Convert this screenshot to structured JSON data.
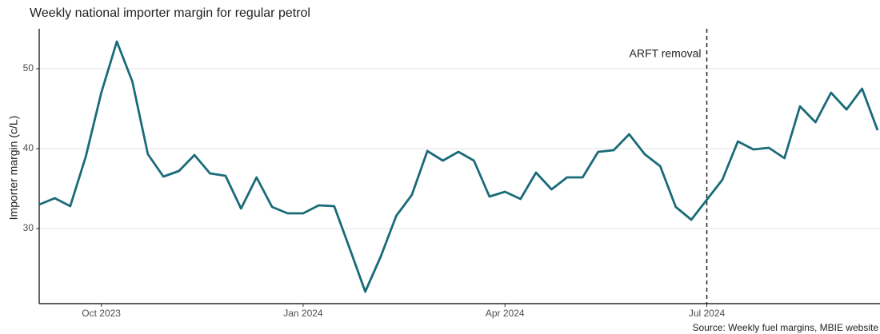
{
  "chart_data": {
    "type": "line",
    "title": "Weekly national importer margin for regular petrol",
    "y_label": "Importer margin (c/L)",
    "source": "Source: Weekly fuel margins, MBIE website",
    "annotation": "ARFT removal",
    "color": "#1a6b78",
    "grid": true,
    "categories": [
      null,
      null,
      null,
      null,
      "Oct 2023",
      null,
      null,
      null,
      null,
      null,
      null,
      null,
      null,
      null,
      null,
      null,
      null,
      "Jan 2024",
      null,
      null,
      null,
      null,
      null,
      null,
      null,
      null,
      null,
      null,
      null,
      null,
      "Apr 2024",
      null,
      null,
      null,
      null,
      null,
      null,
      null,
      null,
      null,
      null,
      null,
      null,
      "Jul 2024",
      null,
      null,
      null,
      null,
      null,
      null,
      null,
      null,
      null,
      null,
      null
    ],
    "values": [
      33.0,
      33.8,
      32.8,
      39.0,
      47.0,
      53.4,
      48.4,
      39.3,
      36.5,
      37.2,
      39.2,
      36.9,
      36.6,
      32.5,
      36.4,
      32.7,
      31.9,
      31.9,
      32.9,
      32.8,
      27.5,
      22.1,
      26.5,
      31.6,
      34.2,
      39.7,
      38.5,
      39.6,
      38.5,
      34.0,
      34.6,
      33.7,
      37.0,
      34.9,
      36.4,
      36.4,
      39.6,
      39.8,
      41.8,
      39.3,
      37.8,
      32.7,
      31.1,
      33.6,
      36.1,
      40.9,
      39.9,
      40.1,
      38.8,
      45.3,
      43.3,
      47.0,
      44.9,
      47.5,
      42.3
    ],
    "ylim": [
      20.6,
      55
    ],
    "yticks": [
      30,
      40,
      50
    ]
  }
}
